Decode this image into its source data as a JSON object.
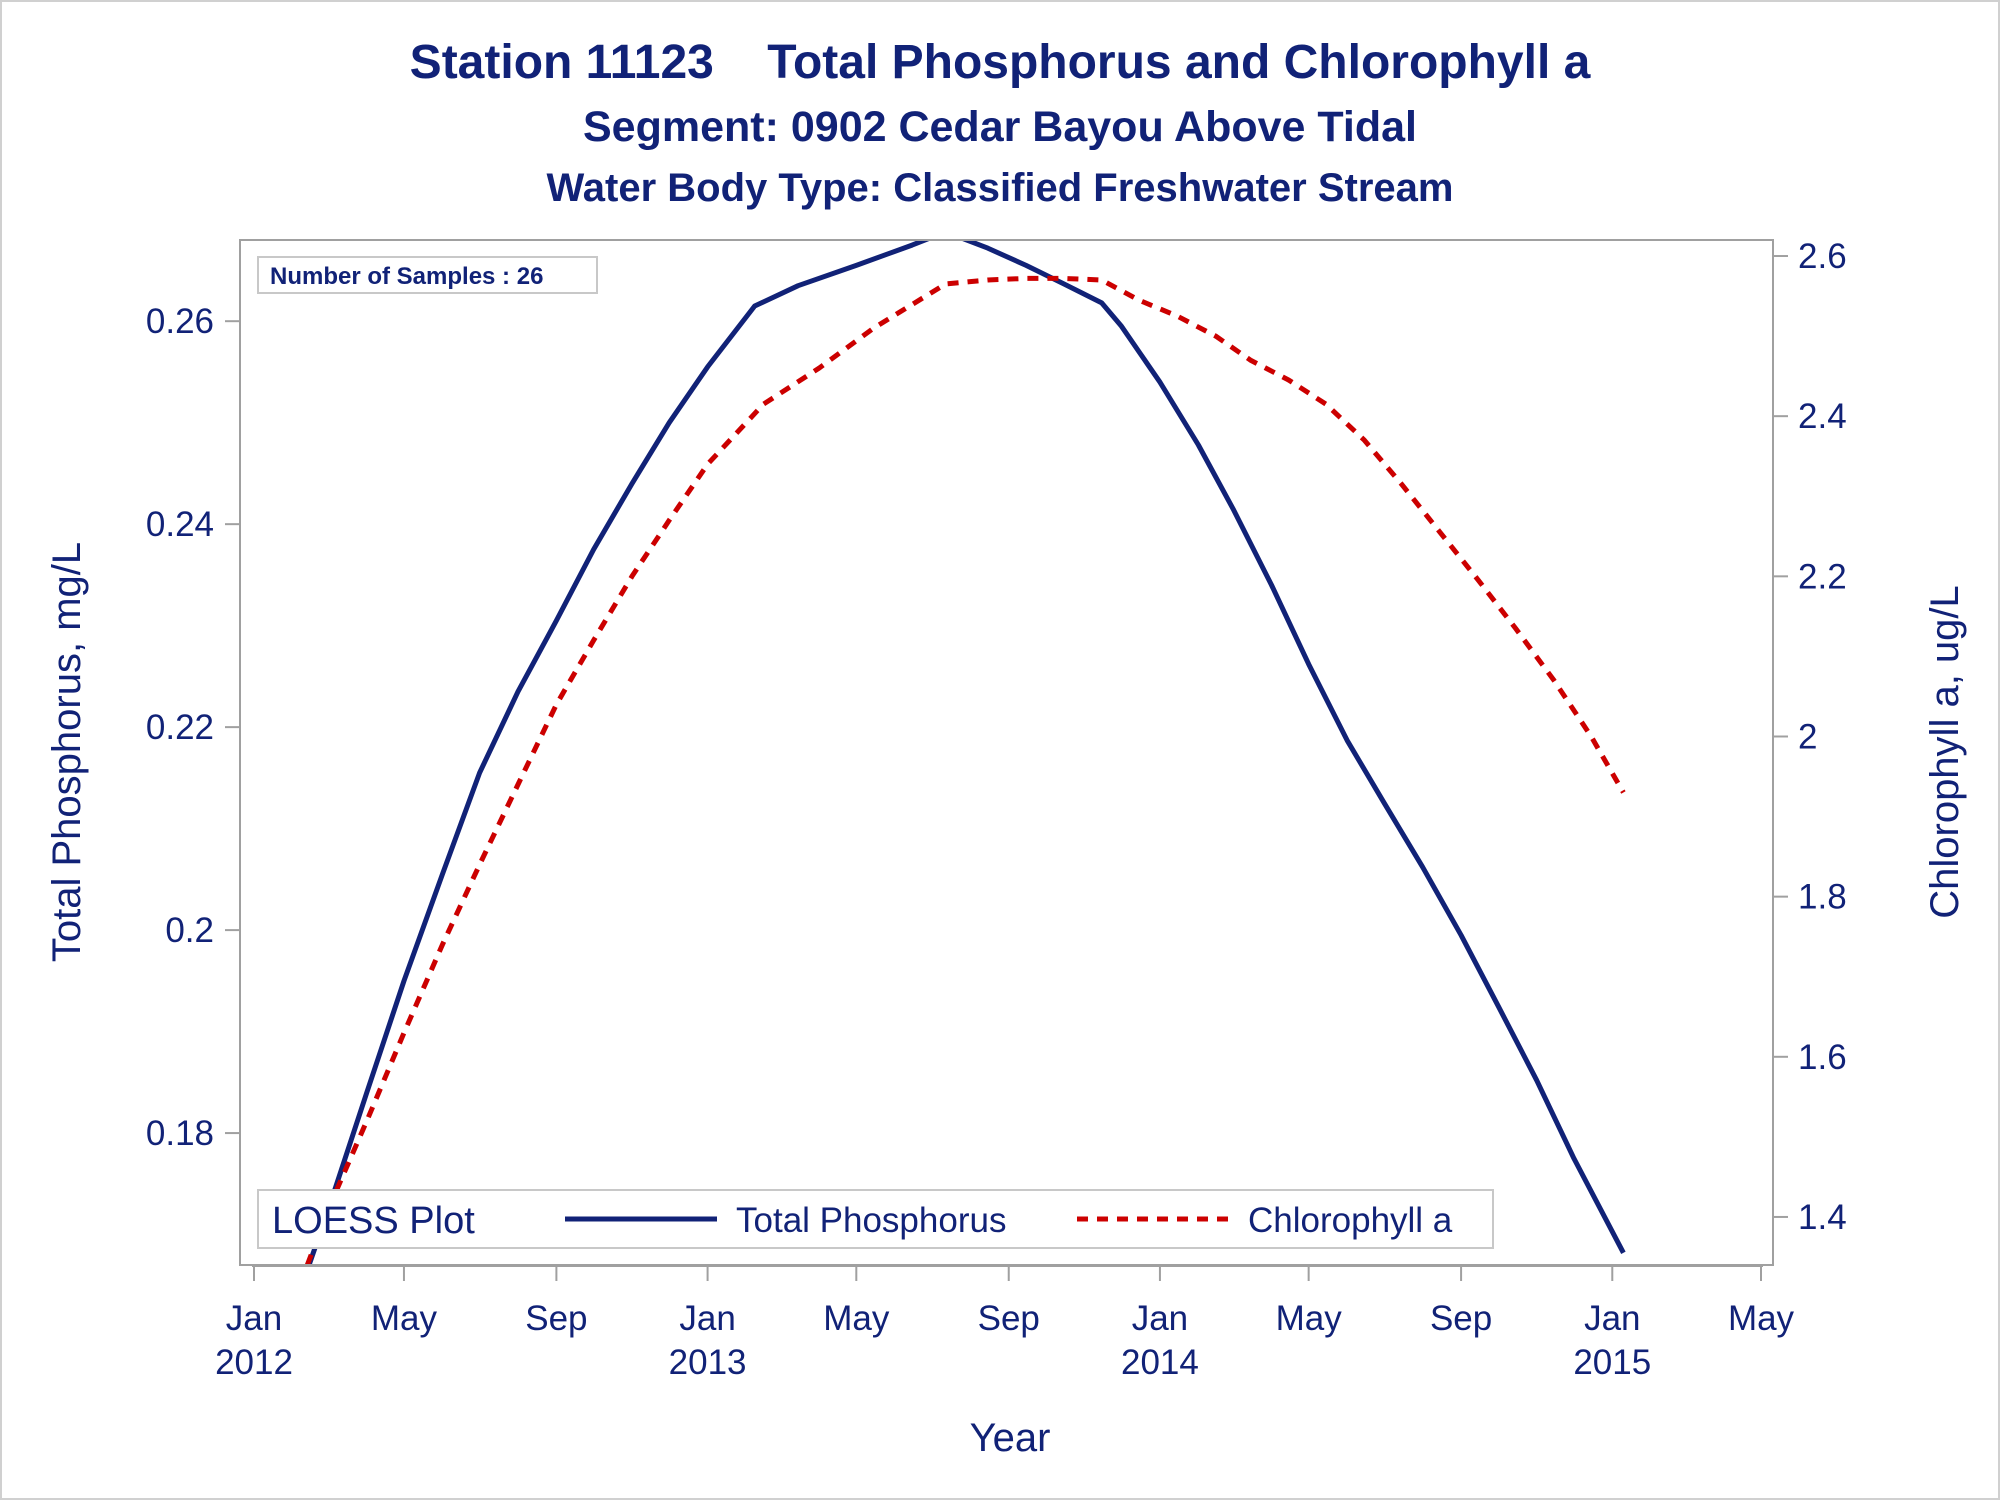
{
  "titles": {
    "line1": "Station 11123    Total Phosphorus and Chlorophyll a",
    "line2": "Segment: 0902  Cedar Bayou Above Tidal",
    "line3": "Water Body Type: Classified Freshwater Stream"
  },
  "inset_label": "Number of Samples : 26",
  "legend": {
    "title": "LOESS Plot",
    "items": [
      "Total Phosphorus",
      "Chlorophyll a"
    ]
  },
  "colors": {
    "text": "#112277",
    "phosphorus": "#112277",
    "chlorophyll": "#cc0000",
    "frame": "#a0a0a0"
  },
  "chart_data": {
    "type": "line",
    "title": "Station 11123    Total Phosphorus and Chlorophyll a",
    "subtitle": [
      "Segment: 0902  Cedar Bayou Above Tidal",
      "Water Body Type: Classified Freshwater Stream"
    ],
    "xlabel": "Year",
    "ylabel": "Total Phosphorus, mg/L",
    "y2label": "Chlorophyll a, ug/L",
    "xlim": [
      "2012-01-01",
      "2015-05-01"
    ],
    "ylim": [
      0.167,
      0.268
    ],
    "y2lim": [
      1.34,
      2.62
    ],
    "x_ticks": [
      {
        "date": "2012-01-01",
        "label": [
          "Jan",
          "2012"
        ]
      },
      {
        "date": "2012-05-01",
        "label": [
          "May"
        ]
      },
      {
        "date": "2012-09-01",
        "label": [
          "Sep"
        ]
      },
      {
        "date": "2013-01-01",
        "label": [
          "Jan",
          "2013"
        ]
      },
      {
        "date": "2013-05-01",
        "label": [
          "May"
        ]
      },
      {
        "date": "2013-09-01",
        "label": [
          "Sep"
        ]
      },
      {
        "date": "2014-01-01",
        "label": [
          "Jan",
          "2014"
        ]
      },
      {
        "date": "2014-05-01",
        "label": [
          "May"
        ]
      },
      {
        "date": "2014-09-01",
        "label": [
          "Sep"
        ]
      },
      {
        "date": "2015-01-01",
        "label": [
          "Jan",
          "2015"
        ]
      },
      {
        "date": "2015-05-01",
        "label": [
          "May"
        ]
      }
    ],
    "y_ticks": [
      0.18,
      0.2,
      0.22,
      0.24,
      0.26
    ],
    "y_tick_labels": [
      "0.18",
      "0.2",
      "0.22",
      "0.24",
      "0.26"
    ],
    "y2_ticks": [
      1.4,
      1.6,
      1.8,
      2.0,
      2.2,
      2.4,
      2.6
    ],
    "y2_tick_labels": [
      "1.4",
      "1.6",
      "1.8",
      "2",
      "2.2",
      "2.4",
      "2.6"
    ],
    "series": [
      {
        "name": "Total Phosphorus",
        "axis": "left",
        "style": "solid",
        "points": [
          [
            "2012-02-13",
            0.1665
          ],
          [
            "2012-03-01",
            0.1725
          ],
          [
            "2012-04-01",
            0.184
          ],
          [
            "2012-05-01",
            0.195
          ],
          [
            "2012-06-01",
            0.2055
          ],
          [
            "2012-07-01",
            0.2155
          ],
          [
            "2012-08-01",
            0.2235
          ],
          [
            "2012-09-01",
            0.2305
          ],
          [
            "2012-10-01",
            0.2375
          ],
          [
            "2012-11-01",
            0.244
          ],
          [
            "2012-12-01",
            0.25
          ],
          [
            "2013-01-01",
            0.2555
          ],
          [
            "2013-02-08",
            0.2615
          ],
          [
            "2013-03-15",
            0.2635
          ],
          [
            "2013-05-01",
            0.2655
          ],
          [
            "2013-06-15",
            0.2675
          ],
          [
            "2013-07-12",
            0.2688
          ],
          [
            "2013-08-15",
            0.2672
          ],
          [
            "2013-09-15",
            0.2655
          ],
          [
            "2013-10-15",
            0.2637
          ],
          [
            "2013-11-15",
            0.2618
          ],
          [
            "2013-12-01",
            0.2595
          ],
          [
            "2014-01-01",
            0.254
          ],
          [
            "2014-02-01",
            0.2478
          ],
          [
            "2014-03-01",
            0.2415
          ],
          [
            "2014-04-01",
            0.234
          ],
          [
            "2014-05-01",
            0.2262
          ],
          [
            "2014-06-01",
            0.2187
          ],
          [
            "2014-07-01",
            0.2125
          ],
          [
            "2014-08-01",
            0.2062
          ],
          [
            "2014-09-01",
            0.1995
          ],
          [
            "2014-10-01",
            0.1925
          ],
          [
            "2014-11-01",
            0.1852
          ],
          [
            "2014-12-01",
            0.1775
          ],
          [
            "2015-01-10",
            0.1682
          ]
        ]
      },
      {
        "name": "Chlorophyll a",
        "axis": "right",
        "style": "dashed",
        "points": [
          [
            "2012-02-13",
            1.34
          ],
          [
            "2012-03-01",
            1.41
          ],
          [
            "2012-04-01",
            1.52
          ],
          [
            "2012-05-01",
            1.63
          ],
          [
            "2012-06-01",
            1.74
          ],
          [
            "2012-07-01",
            1.84
          ],
          [
            "2012-08-01",
            1.94
          ],
          [
            "2012-09-01",
            2.04
          ],
          [
            "2012-10-01",
            2.12
          ],
          [
            "2012-11-01",
            2.2
          ],
          [
            "2012-12-01",
            2.27
          ],
          [
            "2013-01-01",
            2.34
          ],
          [
            "2013-02-15",
            2.415
          ],
          [
            "2013-04-01",
            2.46
          ],
          [
            "2013-05-15",
            2.51
          ],
          [
            "2013-07-12",
            2.565
          ],
          [
            "2013-08-15",
            2.57
          ],
          [
            "2013-09-15",
            2.572
          ],
          [
            "2013-10-15",
            2.572
          ],
          [
            "2013-11-15",
            2.57
          ],
          [
            "2013-12-15",
            2.545
          ],
          [
            "2014-01-15",
            2.525
          ],
          [
            "2014-02-15",
            2.5
          ],
          [
            "2014-03-15",
            2.47
          ],
          [
            "2014-04-15",
            2.445
          ],
          [
            "2014-05-15",
            2.415
          ],
          [
            "2014-06-15",
            2.37
          ],
          [
            "2014-07-15",
            2.315
          ],
          [
            "2014-08-15",
            2.255
          ],
          [
            "2014-09-15",
            2.195
          ],
          [
            "2014-10-15",
            2.135
          ],
          [
            "2014-11-15",
            2.07
          ],
          [
            "2014-12-15",
            2.0
          ],
          [
            "2015-01-10",
            1.93
          ]
        ]
      }
    ]
  }
}
